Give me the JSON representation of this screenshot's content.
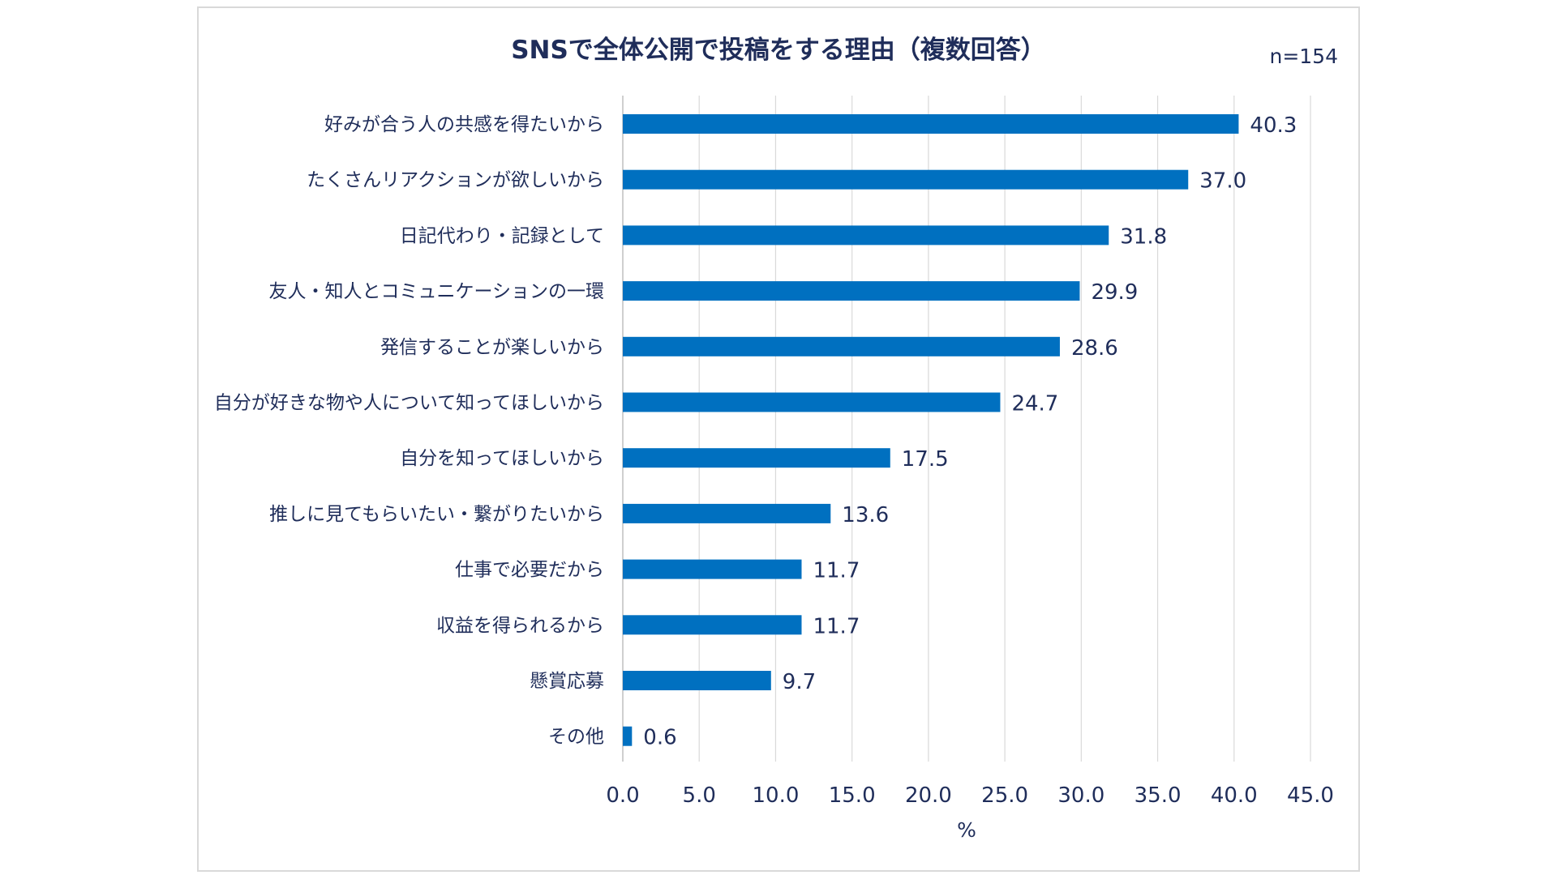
{
  "chart_data": {
    "type": "bar",
    "orientation": "horizontal",
    "title": "SNSで全体公開で投稿をする理由（複数回答）",
    "sample_size_label": "n=154",
    "xlabel": "%",
    "ylabel": "",
    "xlim": [
      0,
      45
    ],
    "tick_step": 5,
    "tick_labels": [
      "0.0",
      "5.0",
      "10.0",
      "15.0",
      "20.0",
      "25.0",
      "30.0",
      "35.0",
      "40.0",
      "45.0"
    ],
    "grid": "vertical",
    "bar_color": "#0070c0",
    "categories": [
      "好みが合う人の共感を得たいから",
      "たくさんリアクションが欲しいから",
      "日記代わり・記録として",
      "友人・知人とコミュニケーションの一環",
      "発信することが楽しいから",
      "自分が好きな物や人について知ってほしいから",
      "自分を知ってほしいから",
      "推しに見てもらいたい・繋がりたいから",
      "仕事で必要だから",
      "収益を得られるから",
      "懸賞応募",
      "その他"
    ],
    "values": [
      40.3,
      37.0,
      31.8,
      29.9,
      28.6,
      24.7,
      17.5,
      13.6,
      11.7,
      11.7,
      9.7,
      0.6
    ],
    "value_labels": [
      "40.3",
      "37.0",
      "31.8",
      "29.9",
      "28.6",
      "24.7",
      "17.5",
      "13.6",
      "11.7",
      "11.7",
      "9.7",
      "0.6"
    ]
  }
}
